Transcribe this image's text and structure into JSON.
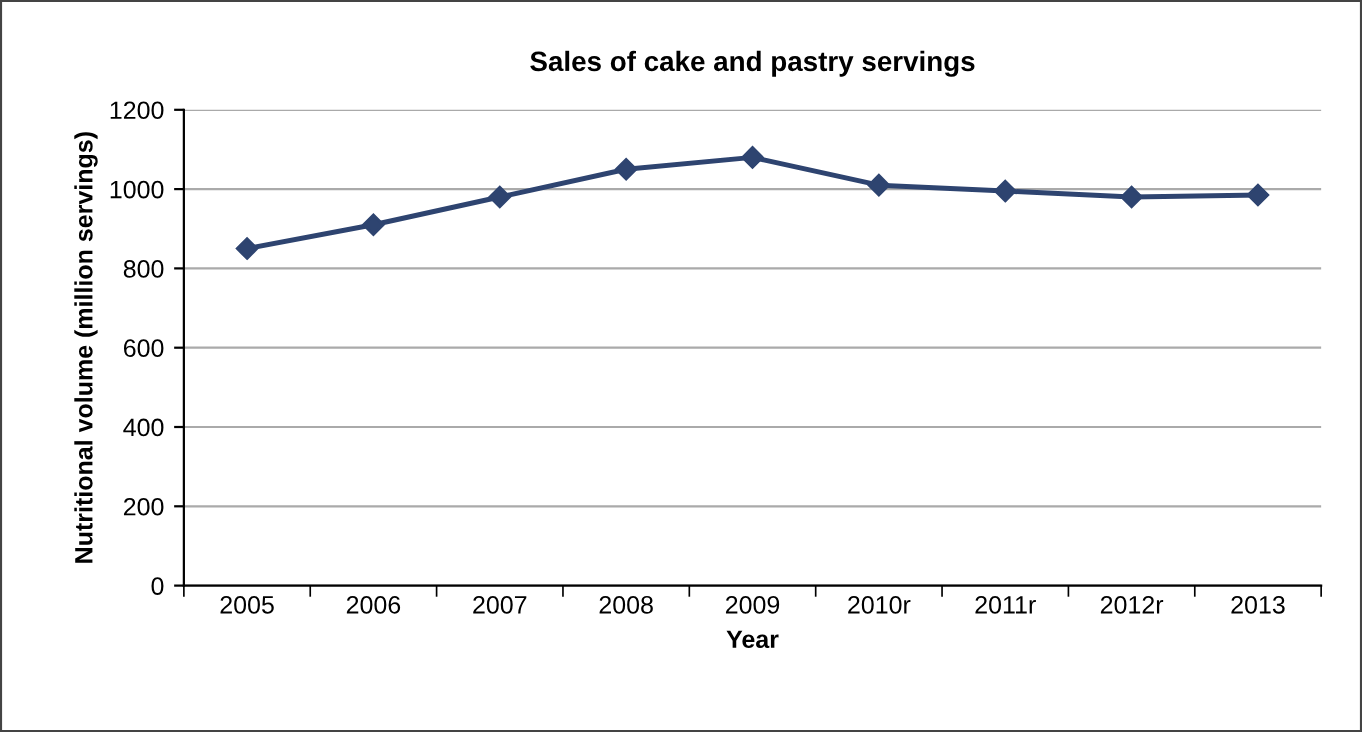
{
  "chart_data": {
    "type": "line",
    "title": "Sales of cake and pastry servings",
    "xlabel": "Year",
    "ylabel": "Nutritional volume (million servings)",
    "categories": [
      "2005",
      "2006",
      "2007",
      "2008",
      "2009",
      "2010r",
      "2011r",
      "2012r",
      "2013"
    ],
    "series": [
      {
        "color": "#2e4470",
        "values": [
          850,
          910,
          980,
          1050,
          1080,
          1010,
          995,
          980,
          985
        ]
      }
    ],
    "ylim": [
      0,
      1200
    ],
    "yticks": [
      0,
      200,
      400,
      600,
      800,
      1000,
      1200
    ],
    "grid": "y",
    "marker": "diamond",
    "line_style": "solid"
  }
}
